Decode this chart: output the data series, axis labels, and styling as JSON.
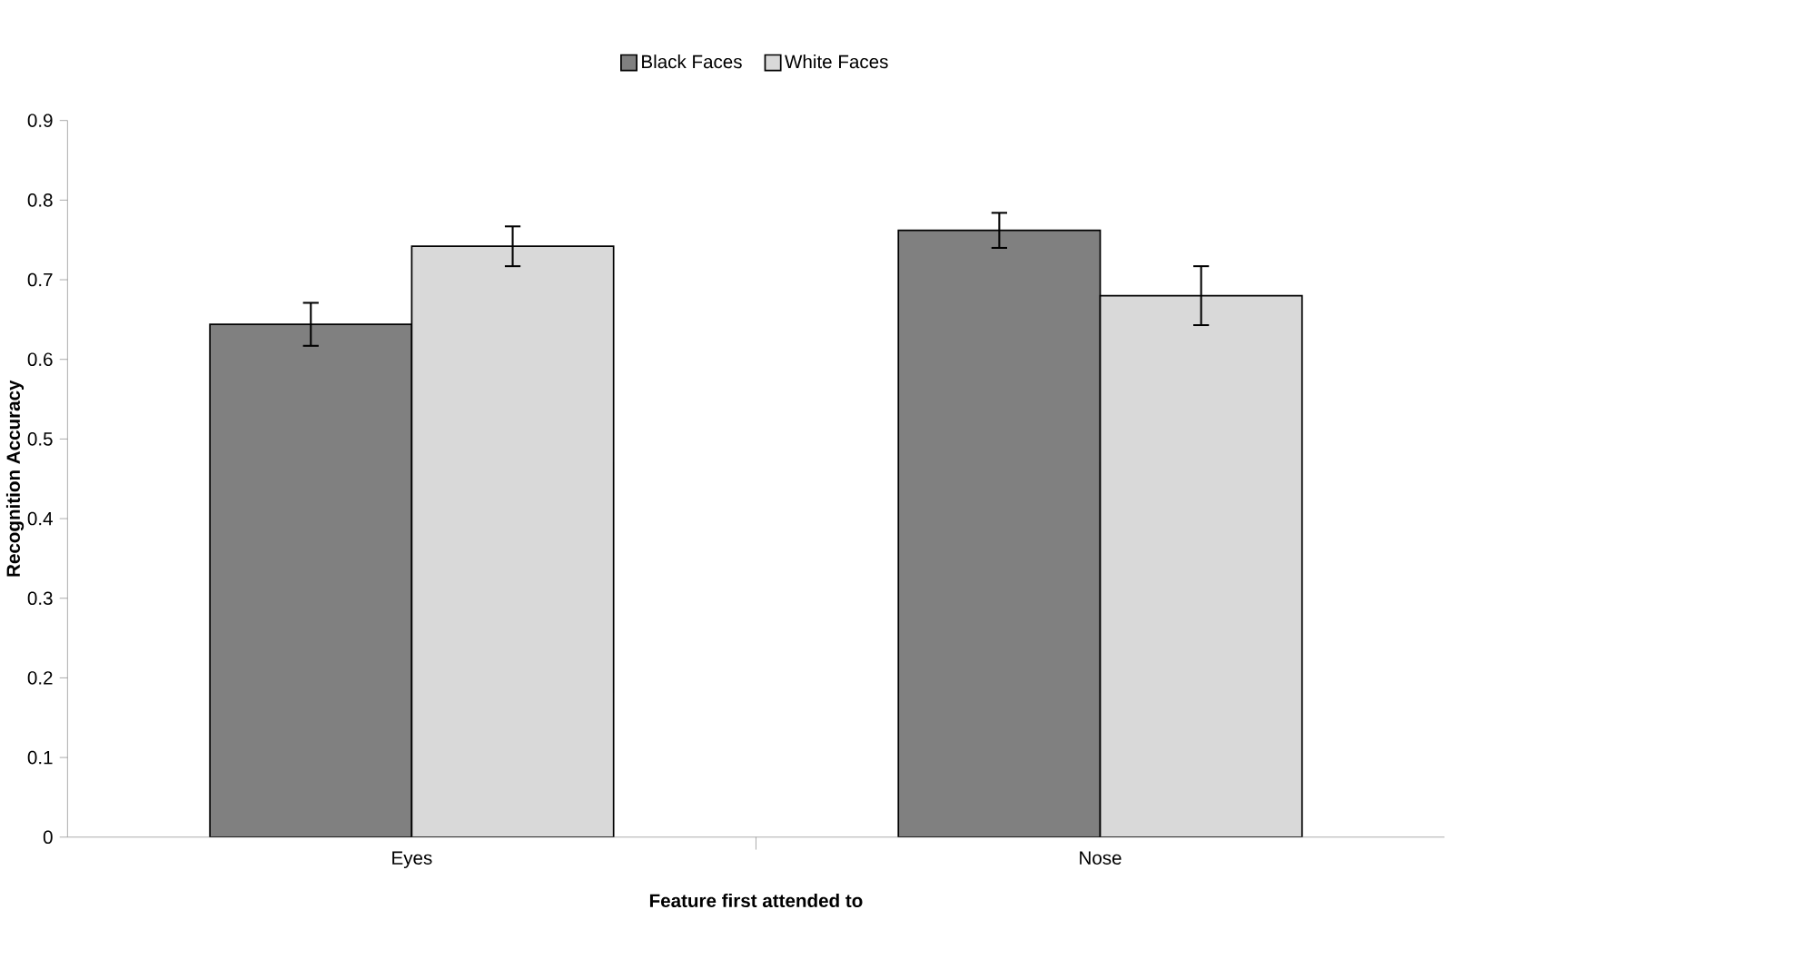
{
  "chart_data": {
    "type": "bar",
    "xlabel": "Feature first attended to",
    "ylabel": "Recognition Accuracy",
    "categories": [
      "Eyes",
      "Nose"
    ],
    "series": [
      {
        "name": "Black Faces",
        "color": "#808080",
        "values": [
          0.644,
          0.762
        ],
        "errors": [
          0.027,
          0.022
        ]
      },
      {
        "name": "White Faces",
        "color": "#d9d9d9",
        "values": [
          0.742,
          0.68
        ],
        "errors": [
          0.025,
          0.037
        ]
      }
    ],
    "ylim": [
      0,
      0.9
    ],
    "yticks": [
      0,
      0.1,
      0.2,
      0.3,
      0.4,
      0.5,
      0.6,
      0.7,
      0.8,
      0.9
    ],
    "grid": false,
    "legend": "top"
  }
}
